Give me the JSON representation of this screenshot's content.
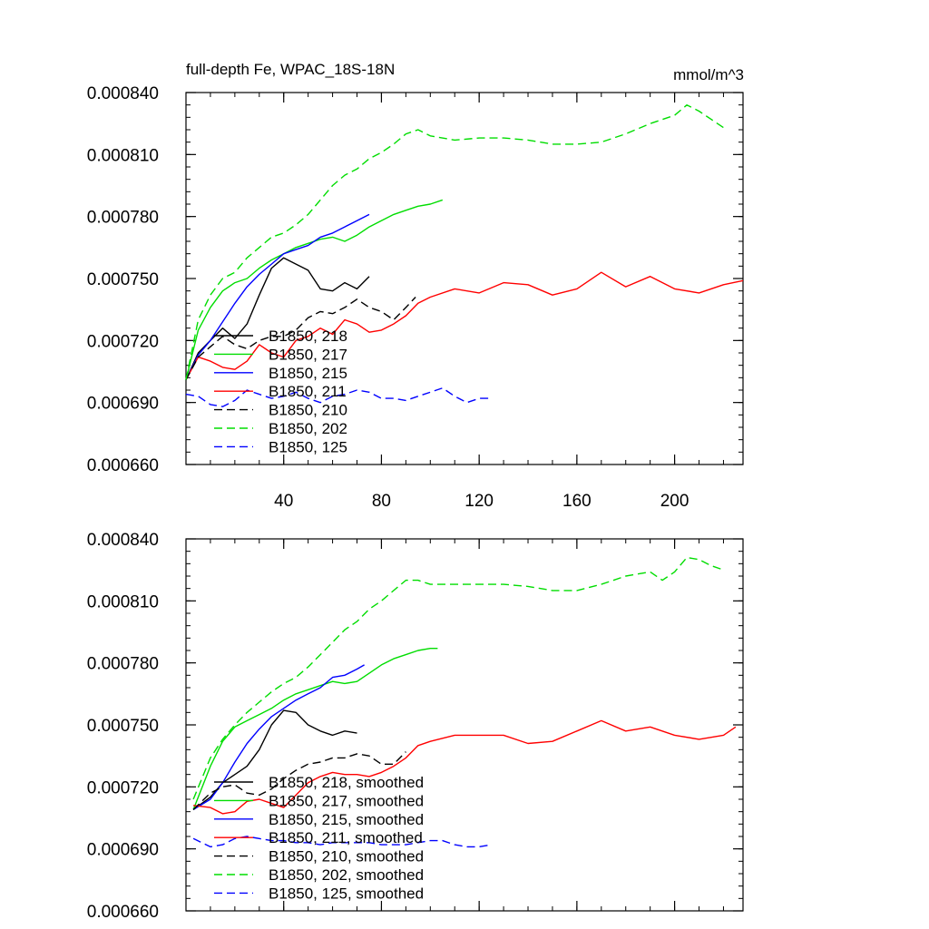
{
  "chart_data": [
    {
      "type": "line",
      "title": "full-depth Fe, WPAC_18S-18N",
      "units": "mmol/m^3",
      "xlabel": "",
      "ylabel": "",
      "xlim": [
        0,
        228
      ],
      "ylim": [
        0.00066,
        0.00084
      ],
      "xticks": [
        40,
        80,
        120,
        160,
        200
      ],
      "xtick_labels": [
        "40",
        "80",
        "120",
        "160",
        "200"
      ],
      "yticks": [
        0.00066,
        0.00069,
        0.00072,
        0.00075,
        0.00078,
        0.00081,
        0.00084
      ],
      "ytick_labels": [
        "0.000660",
        "0.000690",
        "0.000720",
        "0.000750",
        "0.000780",
        "0.000810",
        "0.000840"
      ],
      "legend_location": "lower-left",
      "series": [
        {
          "name": "B1850, 218",
          "color": "#000000",
          "dash": "solid",
          "x": [
            0,
            5,
            10,
            15,
            20,
            25,
            30,
            35,
            40,
            45,
            50,
            55,
            60,
            65,
            70,
            75
          ],
          "y": [
            0.000701,
            0.000714,
            0.00072,
            0.000726,
            0.000721,
            0.000728,
            0.000742,
            0.000755,
            0.00076,
            0.000757,
            0.000754,
            0.000745,
            0.000744,
            0.000748,
            0.000745,
            0.000751
          ]
        },
        {
          "name": "B1850, 217",
          "color": "#00dd00",
          "dash": "solid",
          "x": [
            0,
            5,
            10,
            15,
            20,
            25,
            30,
            35,
            40,
            45,
            50,
            55,
            60,
            65,
            70,
            75,
            80,
            85,
            90,
            95,
            100,
            105
          ],
          "y": [
            0.000701,
            0.000725,
            0.000736,
            0.000744,
            0.000748,
            0.00075,
            0.000755,
            0.000759,
            0.000762,
            0.000765,
            0.000767,
            0.000769,
            0.00077,
            0.000768,
            0.000771,
            0.000775,
            0.000778,
            0.000781,
            0.000783,
            0.000785,
            0.000786,
            0.000788
          ]
        },
        {
          "name": "B1850, 215",
          "color": "#0000ff",
          "dash": "solid",
          "x": [
            0,
            5,
            10,
            15,
            20,
            25,
            30,
            35,
            40,
            45,
            50,
            55,
            60,
            65,
            70,
            75
          ],
          "y": [
            0.000701,
            0.000713,
            0.00072,
            0.000729,
            0.000738,
            0.000746,
            0.000752,
            0.000757,
            0.000762,
            0.000764,
            0.000766,
            0.00077,
            0.000772,
            0.000775,
            0.000778,
            0.000781
          ]
        },
        {
          "name": "B1850, 211",
          "color": "#ff0000",
          "dash": "solid",
          "x": [
            0,
            5,
            10,
            15,
            20,
            25,
            30,
            35,
            40,
            45,
            50,
            55,
            60,
            65,
            70,
            75,
            80,
            85,
            90,
            95,
            100,
            110,
            120,
            130,
            140,
            150,
            160,
            170,
            180,
            190,
            200,
            210,
            220,
            228
          ],
          "y": [
            0.000701,
            0.000712,
            0.00071,
            0.000707,
            0.000706,
            0.00071,
            0.000718,
            0.000714,
            0.000712,
            0.00072,
            0.000722,
            0.000726,
            0.000723,
            0.00073,
            0.000728,
            0.000724,
            0.000725,
            0.000728,
            0.000732,
            0.000738,
            0.000741,
            0.000745,
            0.000743,
            0.000748,
            0.000747,
            0.000742,
            0.000745,
            0.000753,
            0.000746,
            0.000751,
            0.000745,
            0.000743,
            0.000747,
            0.000749
          ]
        },
        {
          "name": "B1850, 210",
          "color": "#000000",
          "dash": "dashed",
          "x": [
            0,
            5,
            10,
            15,
            20,
            25,
            30,
            35,
            40,
            45,
            50,
            55,
            60,
            65,
            70,
            75,
            80,
            85,
            90,
            94
          ],
          "y": [
            0.000701,
            0.000712,
            0.000717,
            0.000722,
            0.000718,
            0.000716,
            0.00072,
            0.000722,
            0.000722,
            0.000725,
            0.000731,
            0.000734,
            0.000733,
            0.000736,
            0.00074,
            0.000736,
            0.000734,
            0.00073,
            0.000736,
            0.000741
          ]
        },
        {
          "name": "B1850, 202",
          "color": "#00dd00",
          "dash": "dashed",
          "x": [
            0,
            5,
            10,
            15,
            20,
            25,
            30,
            35,
            40,
            45,
            50,
            55,
            60,
            65,
            70,
            75,
            80,
            85,
            90,
            95,
            100,
            110,
            120,
            130,
            140,
            150,
            160,
            170,
            180,
            190,
            200,
            205,
            210,
            215,
            220
          ],
          "y": [
            0.000701,
            0.00073,
            0.000742,
            0.00075,
            0.000753,
            0.00076,
            0.000765,
            0.00077,
            0.000772,
            0.000776,
            0.000781,
            0.000788,
            0.000795,
            0.0008,
            0.000803,
            0.000808,
            0.000811,
            0.000815,
            0.00082,
            0.000822,
            0.000819,
            0.000817,
            0.000818,
            0.000818,
            0.000817,
            0.000815,
            0.000815,
            0.000816,
            0.00082,
            0.000825,
            0.000829,
            0.000834,
            0.000831,
            0.000827,
            0.000823
          ]
        },
        {
          "name": "B1850, 125",
          "color": "#0000ff",
          "dash": "dashed",
          "x": [
            0,
            5,
            10,
            15,
            20,
            25,
            30,
            35,
            40,
            45,
            50,
            55,
            60,
            65,
            70,
            75,
            80,
            85,
            90,
            95,
            100,
            105,
            110,
            115,
            120,
            125
          ],
          "y": [
            0.000694,
            0.000693,
            0.000689,
            0.000688,
            0.000691,
            0.000696,
            0.000694,
            0.000692,
            0.000693,
            0.000695,
            0.000692,
            0.00069,
            0.000693,
            0.000694,
            0.000696,
            0.000695,
            0.000692,
            0.000692,
            0.000691,
            0.000693,
            0.000695,
            0.000697,
            0.000693,
            0.00069,
            0.000692,
            0.000692
          ]
        }
      ]
    },
    {
      "type": "line",
      "title": "",
      "xlabel": "",
      "ylabel": "",
      "xlim": [
        0,
        228
      ],
      "ylim": [
        0.00066,
        0.00084
      ],
      "xticks": [
        40,
        80,
        120,
        160,
        200
      ],
      "xtick_labels": [],
      "yticks": [
        0.00066,
        0.00069,
        0.00072,
        0.00075,
        0.00078,
        0.00081,
        0.00084
      ],
      "ytick_labels": [
        "0.000660",
        "0.000690",
        "0.000720",
        "0.000750",
        "0.000780",
        "0.000810",
        "0.000840"
      ],
      "legend_location": "lower-left",
      "series": [
        {
          "name": "B1850, 218, smoothed",
          "color": "#000000",
          "dash": "solid",
          "x": [
            3,
            10,
            15,
            20,
            25,
            30,
            35,
            40,
            45,
            50,
            55,
            60,
            65,
            70
          ],
          "y": [
            0.000709,
            0.000715,
            0.000722,
            0.000726,
            0.00073,
            0.000738,
            0.00075,
            0.000757,
            0.000756,
            0.00075,
            0.000747,
            0.000745,
            0.000747,
            0.000746
          ]
        },
        {
          "name": "B1850, 217, smoothed",
          "color": "#00dd00",
          "dash": "solid",
          "x": [
            3,
            10,
            15,
            20,
            25,
            30,
            35,
            40,
            45,
            50,
            55,
            60,
            65,
            70,
            75,
            80,
            85,
            90,
            95,
            100,
            103
          ],
          "y": [
            0.000709,
            0.00073,
            0.000742,
            0.000749,
            0.000752,
            0.000755,
            0.000758,
            0.000762,
            0.000765,
            0.000767,
            0.000769,
            0.000771,
            0.00077,
            0.000771,
            0.000775,
            0.000779,
            0.000782,
            0.000784,
            0.000786,
            0.000787,
            0.000787
          ]
        },
        {
          "name": "B1850, 215, smoothed",
          "color": "#0000ff",
          "dash": "solid",
          "x": [
            3,
            10,
            15,
            20,
            25,
            30,
            35,
            40,
            45,
            50,
            55,
            60,
            65,
            70,
            73
          ],
          "y": [
            0.000709,
            0.000714,
            0.000722,
            0.000732,
            0.000741,
            0.000748,
            0.000754,
            0.000758,
            0.000762,
            0.000765,
            0.000768,
            0.000773,
            0.000774,
            0.000777,
            0.000779
          ]
        },
        {
          "name": "B1850, 211, smoothed",
          "color": "#ff0000",
          "dash": "solid",
          "x": [
            3,
            10,
            15,
            20,
            25,
            30,
            35,
            40,
            45,
            50,
            55,
            60,
            65,
            70,
            75,
            80,
            85,
            90,
            95,
            100,
            110,
            120,
            130,
            140,
            150,
            160,
            170,
            180,
            190,
            200,
            210,
            220,
            225
          ],
          "y": [
            0.000711,
            0.00071,
            0.000707,
            0.000708,
            0.000713,
            0.000714,
            0.000712,
            0.00071,
            0.000716,
            0.000722,
            0.000725,
            0.000727,
            0.000726,
            0.000726,
            0.000725,
            0.000727,
            0.00073,
            0.000734,
            0.00074,
            0.000742,
            0.000745,
            0.000745,
            0.000745,
            0.000741,
            0.000742,
            0.000747,
            0.000752,
            0.000747,
            0.000749,
            0.000745,
            0.000743,
            0.000745,
            0.000749
          ]
        },
        {
          "name": "B1850, 210, smoothed",
          "color": "#000000",
          "dash": "dashed",
          "x": [
            3,
            10,
            15,
            20,
            25,
            30,
            35,
            40,
            45,
            50,
            55,
            60,
            65,
            70,
            75,
            80,
            85,
            90
          ],
          "y": [
            0.000709,
            0.000717,
            0.00072,
            0.000721,
            0.000717,
            0.000716,
            0.000719,
            0.000724,
            0.000728,
            0.000731,
            0.000732,
            0.000734,
            0.000734,
            0.000736,
            0.000735,
            0.000731,
            0.000731,
            0.000737
          ]
        },
        {
          "name": "B1850, 202, smoothed",
          "color": "#00dd00",
          "dash": "dashed",
          "x": [
            3,
            10,
            15,
            20,
            25,
            30,
            35,
            40,
            45,
            50,
            55,
            60,
            65,
            70,
            75,
            80,
            85,
            90,
            95,
            100,
            110,
            120,
            130,
            140,
            150,
            160,
            170,
            180,
            190,
            195,
            200,
            205,
            210,
            215,
            220
          ],
          "y": [
            0.000714,
            0.000734,
            0.000743,
            0.00075,
            0.000756,
            0.000761,
            0.000766,
            0.00077,
            0.000773,
            0.000778,
            0.000784,
            0.00079,
            0.000796,
            0.0008,
            0.000806,
            0.00081,
            0.000815,
            0.00082,
            0.00082,
            0.000818,
            0.000818,
            0.000818,
            0.000818,
            0.000817,
            0.000815,
            0.000815,
            0.000818,
            0.000822,
            0.000824,
            0.00082,
            0.000824,
            0.000831,
            0.00083,
            0.000827,
            0.000825
          ]
        },
        {
          "name": "B1850, 125, smoothed",
          "color": "#0000ff",
          "dash": "dashed",
          "x": [
            3,
            10,
            15,
            20,
            25,
            30,
            35,
            40,
            45,
            50,
            55,
            60,
            65,
            70,
            75,
            80,
            85,
            90,
            95,
            100,
            105,
            110,
            115,
            120,
            125
          ],
          "y": [
            0.000695,
            0.000691,
            0.000692,
            0.000695,
            0.000696,
            0.000695,
            0.000694,
            0.000694,
            0.000693,
            0.000693,
            0.000692,
            0.000693,
            0.000693,
            0.000693,
            0.000693,
            0.000692,
            0.000692,
            0.000692,
            0.000693,
            0.000694,
            0.000694,
            0.000692,
            0.000691,
            0.000691,
            0.000692
          ]
        }
      ]
    }
  ]
}
